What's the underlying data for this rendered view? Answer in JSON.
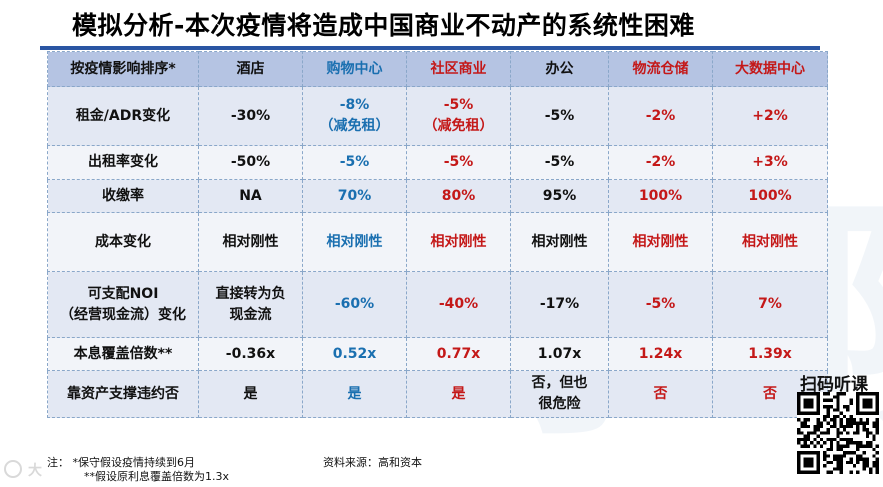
{
  "title": "模拟分析-本次疫情将造成中国商业不动产的系统性困难",
  "watermark": "学 院",
  "colors": {
    "black": "#111111",
    "blue": "#1a6fb0",
    "red": "#c41818",
    "header_bg": "#b5c4e3",
    "title_rule": "#2a55a3"
  },
  "table": {
    "corner": "按疫情影响排序*",
    "columns": [
      {
        "label": "酒店",
        "color": "black"
      },
      {
        "label": "购物中心",
        "color": "blue"
      },
      {
        "label": "社区商业",
        "color": "red"
      },
      {
        "label": "办公",
        "color": "black"
      },
      {
        "label": "物流仓储",
        "color": "red"
      },
      {
        "label": "大数据中心",
        "color": "red"
      }
    ],
    "rows": [
      {
        "label": "租金/ADR变化",
        "cells": [
          "-30%",
          "-8%\n（减免租）",
          "-5%\n（减免租）",
          "-5%",
          "-2%",
          "+2%"
        ]
      },
      {
        "label": "出租率变化",
        "cells": [
          "-50%",
          "-5%",
          "-5%",
          "-5%",
          "-2%",
          "+3%"
        ]
      },
      {
        "label": "收缴率",
        "cells": [
          "NA",
          "70%",
          "80%",
          "95%",
          "100%",
          "100%"
        ]
      },
      {
        "label": "成本变化",
        "cells": [
          "相对刚性",
          "相对刚性",
          "相对刚性",
          "相对刚性",
          "相对刚性",
          "相对刚性"
        ]
      },
      {
        "label": "可支配NOI\n（经营现金流）变化",
        "cells": [
          "直接转为负\n现金流",
          "-60%",
          "-40%",
          "-17%",
          "-5%",
          "7%"
        ]
      },
      {
        "label": "本息覆盖倍数**",
        "cells": [
          "-0.36x",
          "0.52x",
          "0.77x",
          "1.07x",
          "1.24x",
          "1.39x"
        ]
      },
      {
        "label": "靠资产支撑违约否",
        "cells": [
          "是",
          "是",
          "是",
          "否，但也\n很危险",
          "否",
          "否"
        ]
      }
    ]
  },
  "footer": {
    "note1": "注：  *保守假设疫情持续到6月",
    "note2": "**假设原利息覆盖倍数为1.3x",
    "source": "资料来源：高和资本"
  },
  "qr": {
    "label": "扫码听课",
    "icon": "qr-code-icon"
  },
  "logo": {
    "icon": "brand-logo-icon",
    "text": "大"
  }
}
